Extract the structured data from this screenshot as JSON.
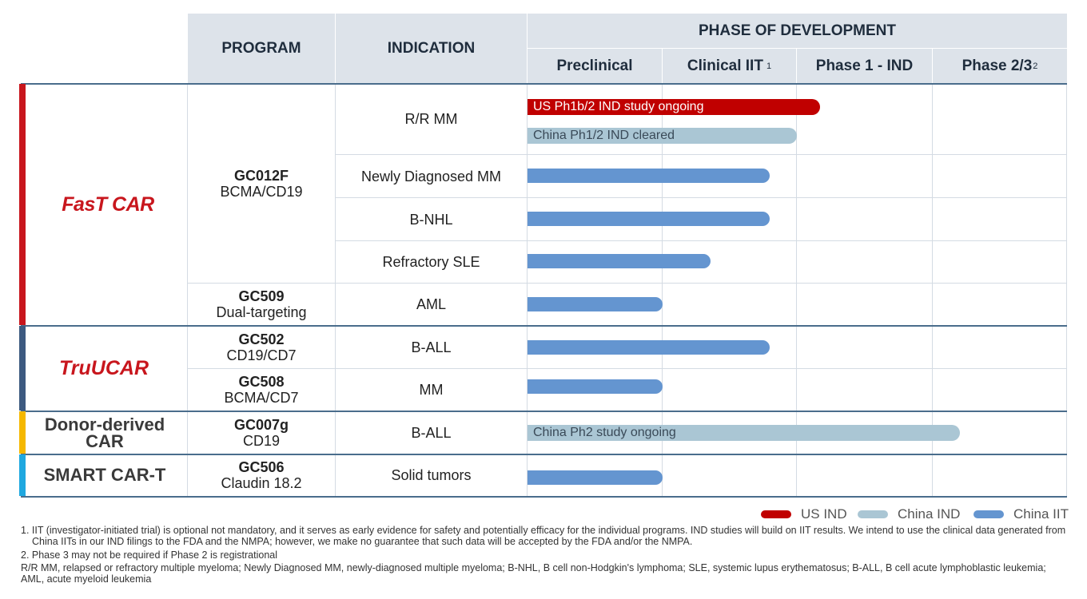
{
  "header": {
    "program": "PROGRAM",
    "indication": "INDICATION",
    "phase_of_development": "PHASE OF DEVELOPMENT",
    "phases": [
      {
        "label": "Preclinical",
        "sup": ""
      },
      {
        "label": "Clinical IIT",
        "sup": "1"
      },
      {
        "label": "Phase 1 - IND",
        "sup": ""
      },
      {
        "label": "Phase 2/3",
        "sup": "2"
      }
    ]
  },
  "platforms": [
    {
      "name": "FasT CAR",
      "color": "#c8161d"
    },
    {
      "name": "TruUCAR",
      "color": "#3d5a80"
    },
    {
      "name": "Donor-derived CAR",
      "color": "#f5b800"
    },
    {
      "name": "SMART CAR-T",
      "color": "#1fa8e0"
    }
  ],
  "programs": [
    {
      "name": "GC012F",
      "target": "BCMA/CD19"
    },
    {
      "name": "GC509",
      "target": "Dual-targeting"
    },
    {
      "name": "GC502",
      "target": "CD19/CD7"
    },
    {
      "name": "GC508",
      "target": "BCMA/CD7"
    },
    {
      "name": "GC007g",
      "target": "CD19"
    },
    {
      "name": "GC506",
      "target": "Claudin 18.2"
    }
  ],
  "indications": [
    "R/R MM",
    "Newly Diagnosed MM",
    "B-NHL",
    "Refractory SLE",
    "AML",
    "B-ALL",
    "MM",
    "B-ALL",
    "Solid tumors"
  ],
  "legend": [
    {
      "label": "US IND",
      "color": "#c00000"
    },
    {
      "label": "China IND",
      "color": "#aac6d4"
    },
    {
      "label": "China IIT",
      "color": "#6495d0"
    }
  ],
  "chart_data": {
    "type": "bar",
    "orientation": "horizontal",
    "phase_axis": [
      "Preclinical",
      "Clinical IIT",
      "Phase 1 - IND",
      "Phase 2/3"
    ],
    "xlim": [
      0,
      4
    ],
    "bars": [
      {
        "row": 0,
        "series": "US IND",
        "start": 0,
        "end": 2.17,
        "label": "US Ph1b/2 IND study ongoing"
      },
      {
        "row": 0,
        "series": "China IND",
        "start": 0,
        "end": 2.0,
        "label": "China Ph1/2 IND cleared"
      },
      {
        "row": 1,
        "series": "China IIT",
        "start": 0,
        "end": 1.8,
        "label": ""
      },
      {
        "row": 2,
        "series": "China IIT",
        "start": 0,
        "end": 1.8,
        "label": ""
      },
      {
        "row": 3,
        "series": "China IIT",
        "start": 0,
        "end": 1.36,
        "label": ""
      },
      {
        "row": 4,
        "series": "China IIT",
        "start": 0,
        "end": 1.0,
        "label": ""
      },
      {
        "row": 5,
        "series": "China IIT",
        "start": 0,
        "end": 1.8,
        "label": ""
      },
      {
        "row": 6,
        "series": "China IIT",
        "start": 0,
        "end": 1.0,
        "label": ""
      },
      {
        "row": 7,
        "series": "China IND",
        "start": 0,
        "end": 3.2,
        "label": "China Ph2 study ongoing"
      },
      {
        "row": 8,
        "series": "China IIT",
        "start": 0,
        "end": 1.0,
        "label": ""
      }
    ]
  },
  "footnotes": [
    "1.  IIT (investigator-initiated trial) is optional not mandatory, and it serves as early evidence for safety and potentially efficacy for the individual programs. IND studies will build on IIT results. We intend to use the clinical data generated from China IITs in our IND filings to the FDA and the NMPA; however, we make no guarantee that such data will be accepted by the FDA and/or the NMPA.",
    "2.  Phase 3 may not be required if Phase 2 is registrational",
    "R/R MM, relapsed or refractory multiple myeloma; Newly Diagnosed MM, newly-diagnosed multiple myeloma; B-NHL, B cell non-Hodgkin's lymphoma; SLE, systemic lupus erythematosus; B-ALL, B cell acute lymphoblastic leukemia; AML, acute myeloid leukemia"
  ]
}
